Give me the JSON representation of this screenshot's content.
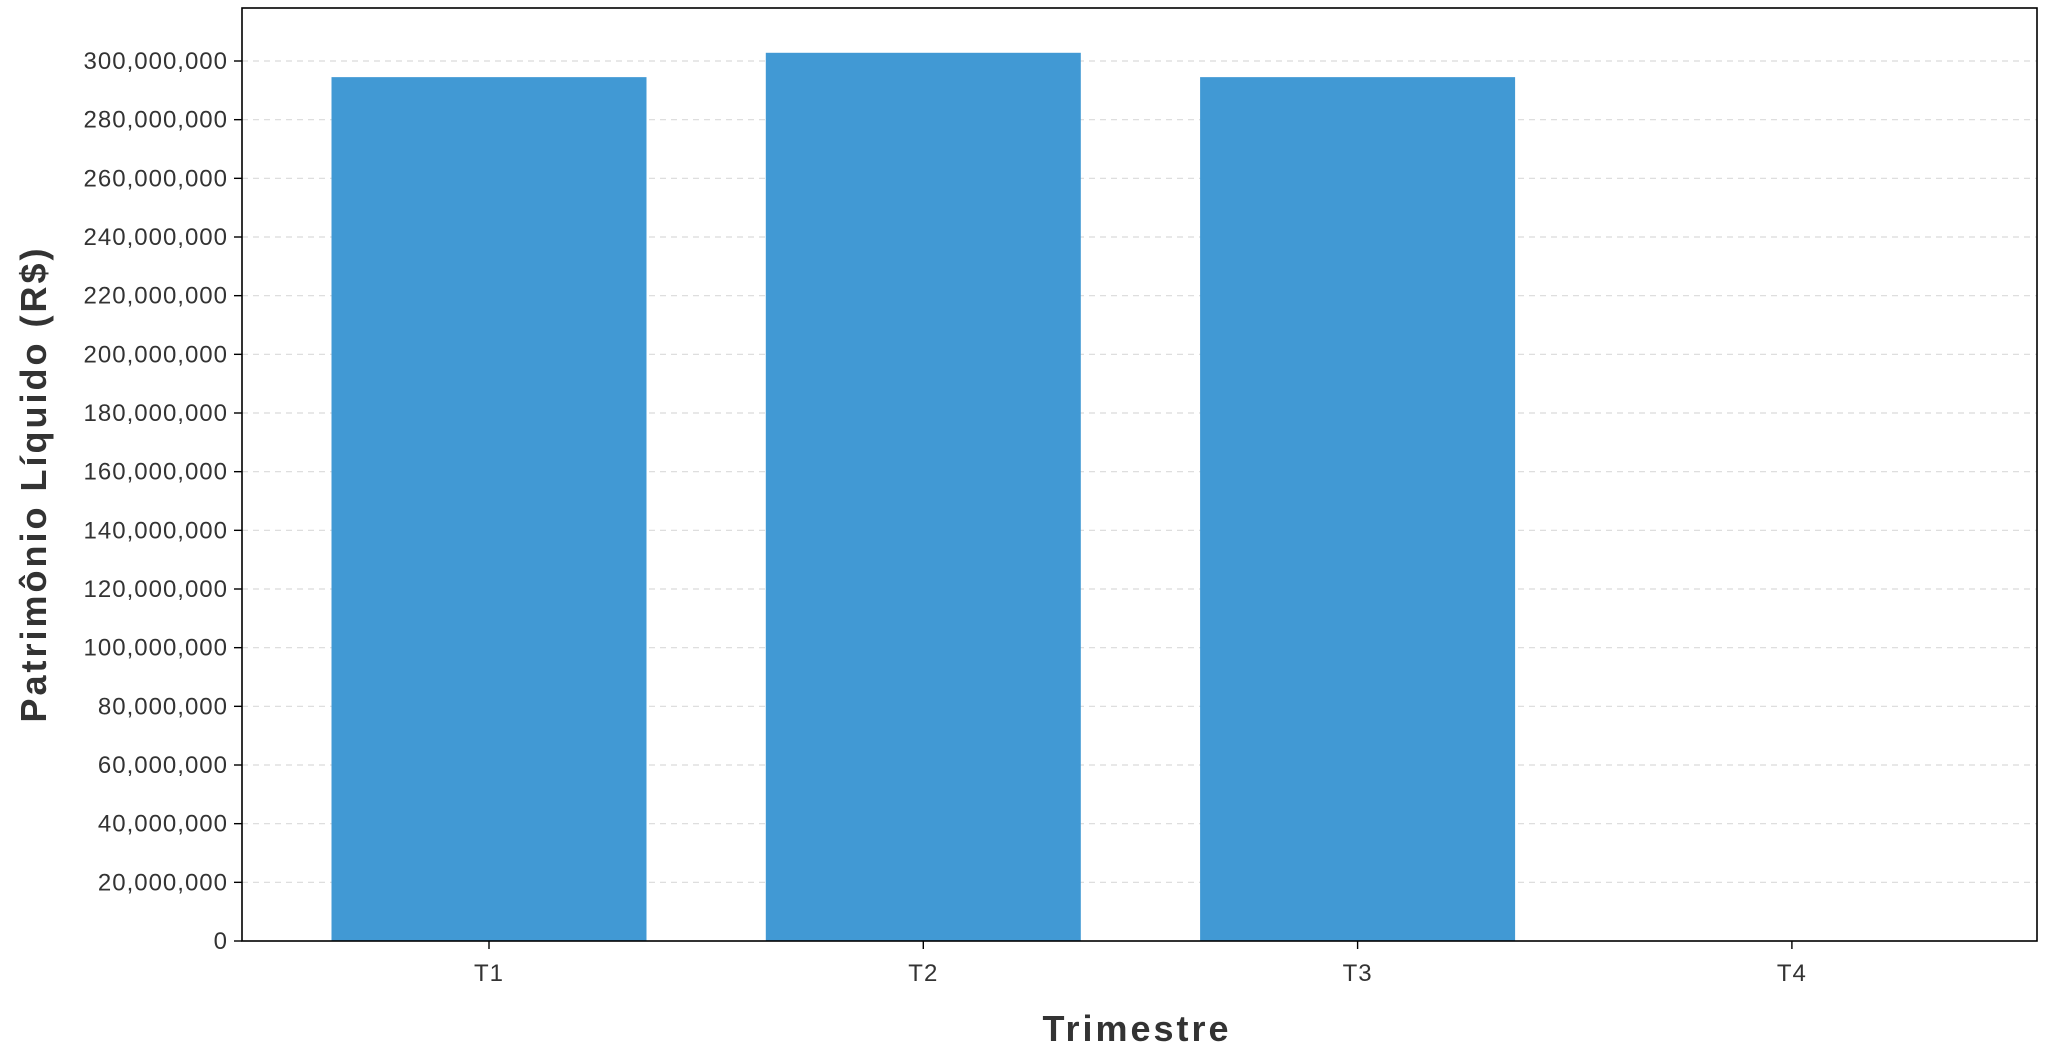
{
  "chart_data": {
    "type": "bar",
    "title": "",
    "xlabel": "Trimestre",
    "ylabel": "Patrimônio Líquido (R$)",
    "categories": [
      "T1",
      "T2",
      "T3",
      "T4"
    ],
    "values": [
      294500000,
      302800000,
      294500000,
      0
    ],
    "ylim": [
      0,
      300000000
    ],
    "yticks": [
      0,
      20000000,
      40000000,
      60000000,
      80000000,
      100000000,
      120000000,
      140000000,
      160000000,
      180000000,
      200000000,
      220000000,
      240000000,
      260000000,
      280000000,
      300000000
    ],
    "ytick_labels": [
      "0",
      "20,000,000",
      "40,000,000",
      "60,000,000",
      "80,000,000",
      "100,000,000",
      "120,000,000",
      "140,000,000",
      "160,000,000",
      "180,000,000",
      "200,000,000",
      "220,000,000",
      "240,000,000",
      "260,000,000",
      "280,000,000",
      "300,000,000"
    ],
    "grid": "horizontal dashed",
    "legend": "none",
    "bar_color": "#4199d4"
  }
}
